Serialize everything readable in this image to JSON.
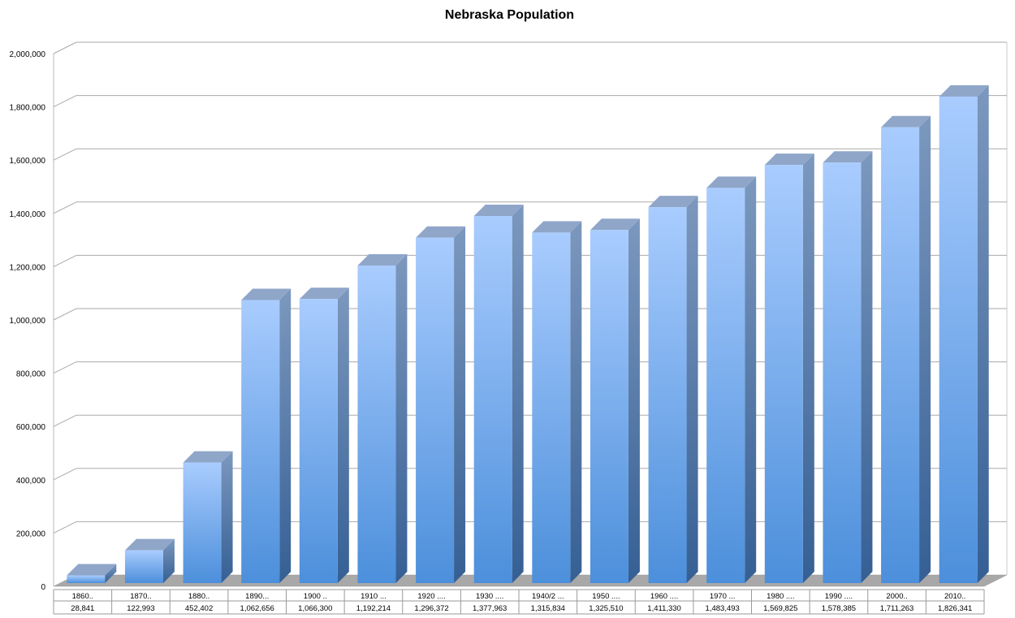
{
  "chart_data": {
    "type": "bar",
    "title": "Nebraska Population",
    "xlabel": "",
    "ylabel": "",
    "ylim": [
      0,
      2000000
    ],
    "yticks": [
      "0",
      "200,000",
      "400,000",
      "600,000",
      "800,000",
      "1,000,000",
      "1,200,000",
      "1,400,000",
      "1,600,000",
      "1,800,000",
      "2,000,000"
    ],
    "grid": true,
    "style": "3d-column",
    "bar_color": "#6EA7EE",
    "categories": [
      "1860..",
      "1870..",
      "1880..",
      "1890...",
      "1900 ..",
      "1910 ...",
      "1920 ....",
      "1930 ....",
      "1940/2 ...",
      "1950 ....",
      "1960 ....",
      "1970 ...",
      "1980 ....",
      "1990 ....",
      "2000..",
      "2010.."
    ],
    "value_labels": [
      "28,841",
      "122,993",
      "452,402",
      "1,062,656",
      "1,066,300",
      "1,192,214",
      "1,296,372",
      "1,377,963",
      "1,315,834",
      "1,325,510",
      "1,411,330",
      "1,483,493",
      "1,569,825",
      "1,578,385",
      "1,711,263",
      "1,826,341"
    ],
    "values": [
      28841,
      122993,
      452402,
      1062656,
      1066300,
      1192214,
      1296372,
      1377963,
      1315834,
      1325510,
      1411330,
      1483493,
      1569825,
      1578385,
      1711263,
      1826341
    ]
  }
}
